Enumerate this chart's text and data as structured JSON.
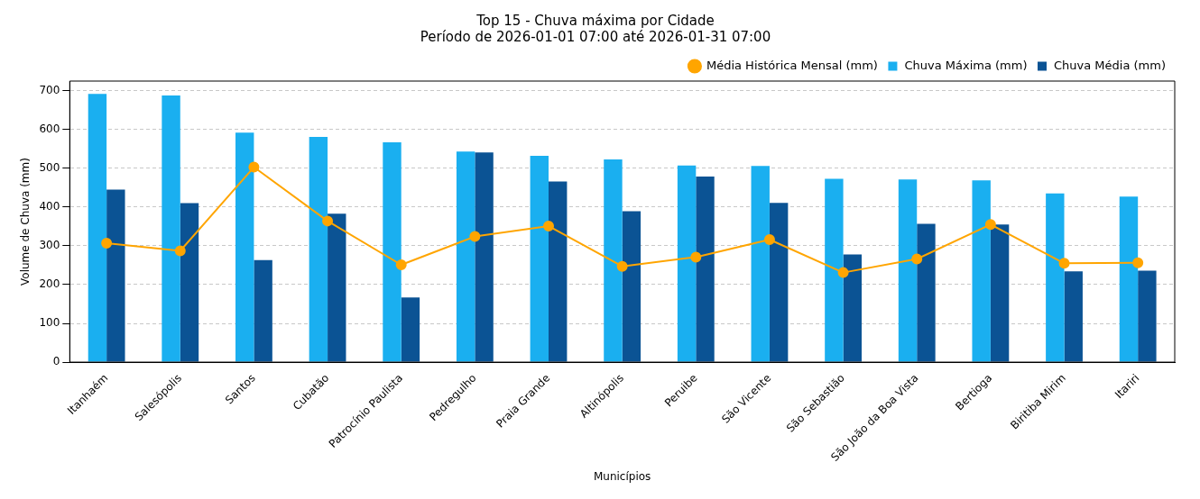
{
  "chart_data": {
    "type": "bar",
    "title": "Top 15 - Chuva máxima por Cidade",
    "subtitle": "Período de 2026-01-01 07:00 até 2026-01-31 07:00",
    "xlabel": "Municípios",
    "ylabel": "Volume de Chuva (mm)",
    "categories": [
      "Itanhaém",
      "Salesópolis",
      "Santos",
      "Cubatão",
      "Patrocínio Paulista",
      "Pedregulho",
      "Praia Grande",
      "Altinópolis",
      "Peruibe",
      "São Vicente",
      "São Sebastião",
      "São João da Boa Vista",
      "Bertioga",
      "Biritiba Mirim",
      "Itariri"
    ],
    "series": [
      {
        "name": "Média Histórica Mensal (mm)",
        "type": "line",
        "color": "#ffa500",
        "marker": "circle",
        "line_style": "solid",
        "values": [
          307,
          287,
          503,
          364,
          251,
          324,
          351,
          247,
          271,
          316,
          231,
          266,
          355,
          255,
          256
        ]
      },
      {
        "name": "Chuva Máxima (mm)",
        "color": "#1aaff0",
        "values": [
          692,
          688,
          592,
          581,
          567,
          543,
          532,
          523,
          507,
          506,
          473,
          471,
          469,
          435,
          427
        ]
      },
      {
        "name": "Chuva Média (mm)",
        "color": "#0b5394",
        "values": [
          445,
          410,
          263,
          383,
          167,
          541,
          466,
          389,
          479,
          411,
          278,
          357,
          355,
          234,
          236
        ]
      }
    ],
    "ylim": [
      0,
      725
    ],
    "yticks": [
      0,
      100,
      200,
      300,
      400,
      500,
      600,
      700
    ],
    "grid": "y",
    "legend": "top right"
  }
}
